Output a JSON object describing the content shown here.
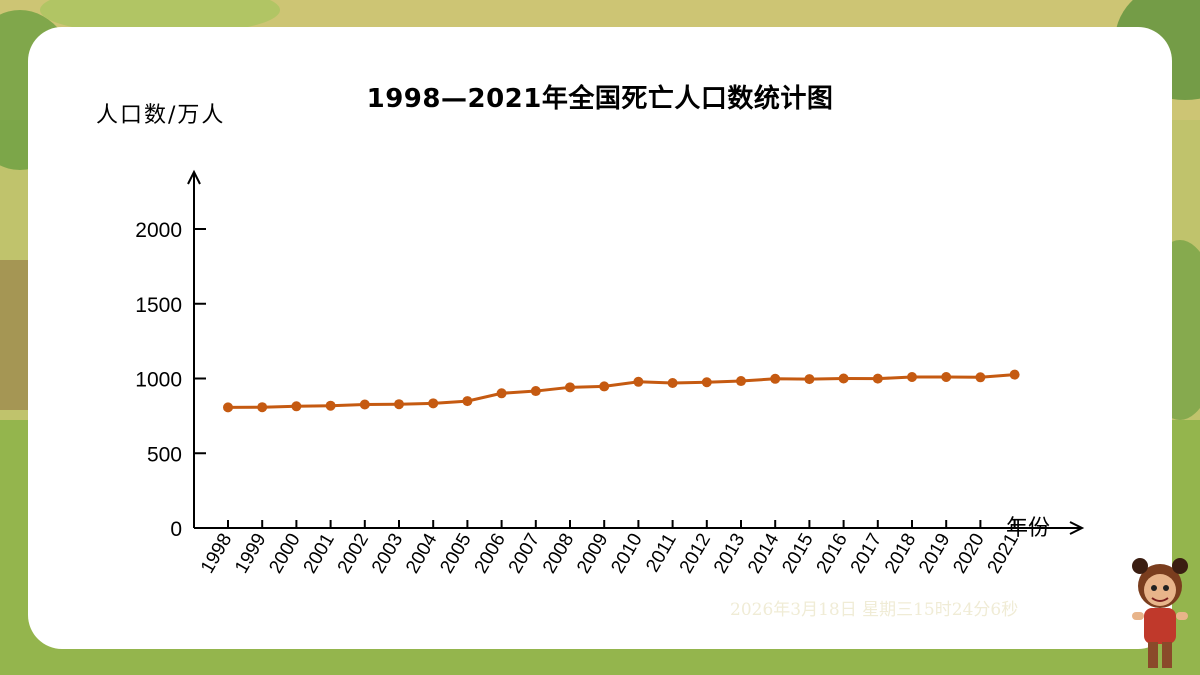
{
  "slide": {
    "timestamp": "2026年3月18日 星期三15时24分6秒",
    "colors": {
      "line": "#c55a11",
      "card": "#ffffff",
      "background": "#b9c46a"
    }
  },
  "chart_data": {
    "type": "line",
    "title": "1998—2021年全国死亡人口数统计图",
    "ylabel": "人口数/万人",
    "xlabel": "年份",
    "categories": [
      "1998",
      "1999",
      "2000",
      "2001",
      "2002",
      "2003",
      "2004",
      "2005",
      "2006",
      "2007",
      "2008",
      "2009",
      "2010",
      "2011",
      "2012",
      "2013",
      "2014",
      "2015",
      "2016",
      "2017",
      "2018",
      "2019",
      "2020",
      "2021"
    ],
    "series": [
      {
        "values": [
          807,
          808,
          814,
          818,
          826,
          828,
          834,
          849,
          901,
          916,
          941,
          947,
          978,
          970,
          975,
          983,
          998,
          996,
          1000,
          999,
          1010,
          1010,
          1008,
          1026
        ]
      }
    ],
    "ylim": [
      0,
      2000
    ],
    "yticks": [
      0,
      500,
      1000,
      1500,
      2000
    ],
    "grid": false,
    "legend": "none"
  }
}
